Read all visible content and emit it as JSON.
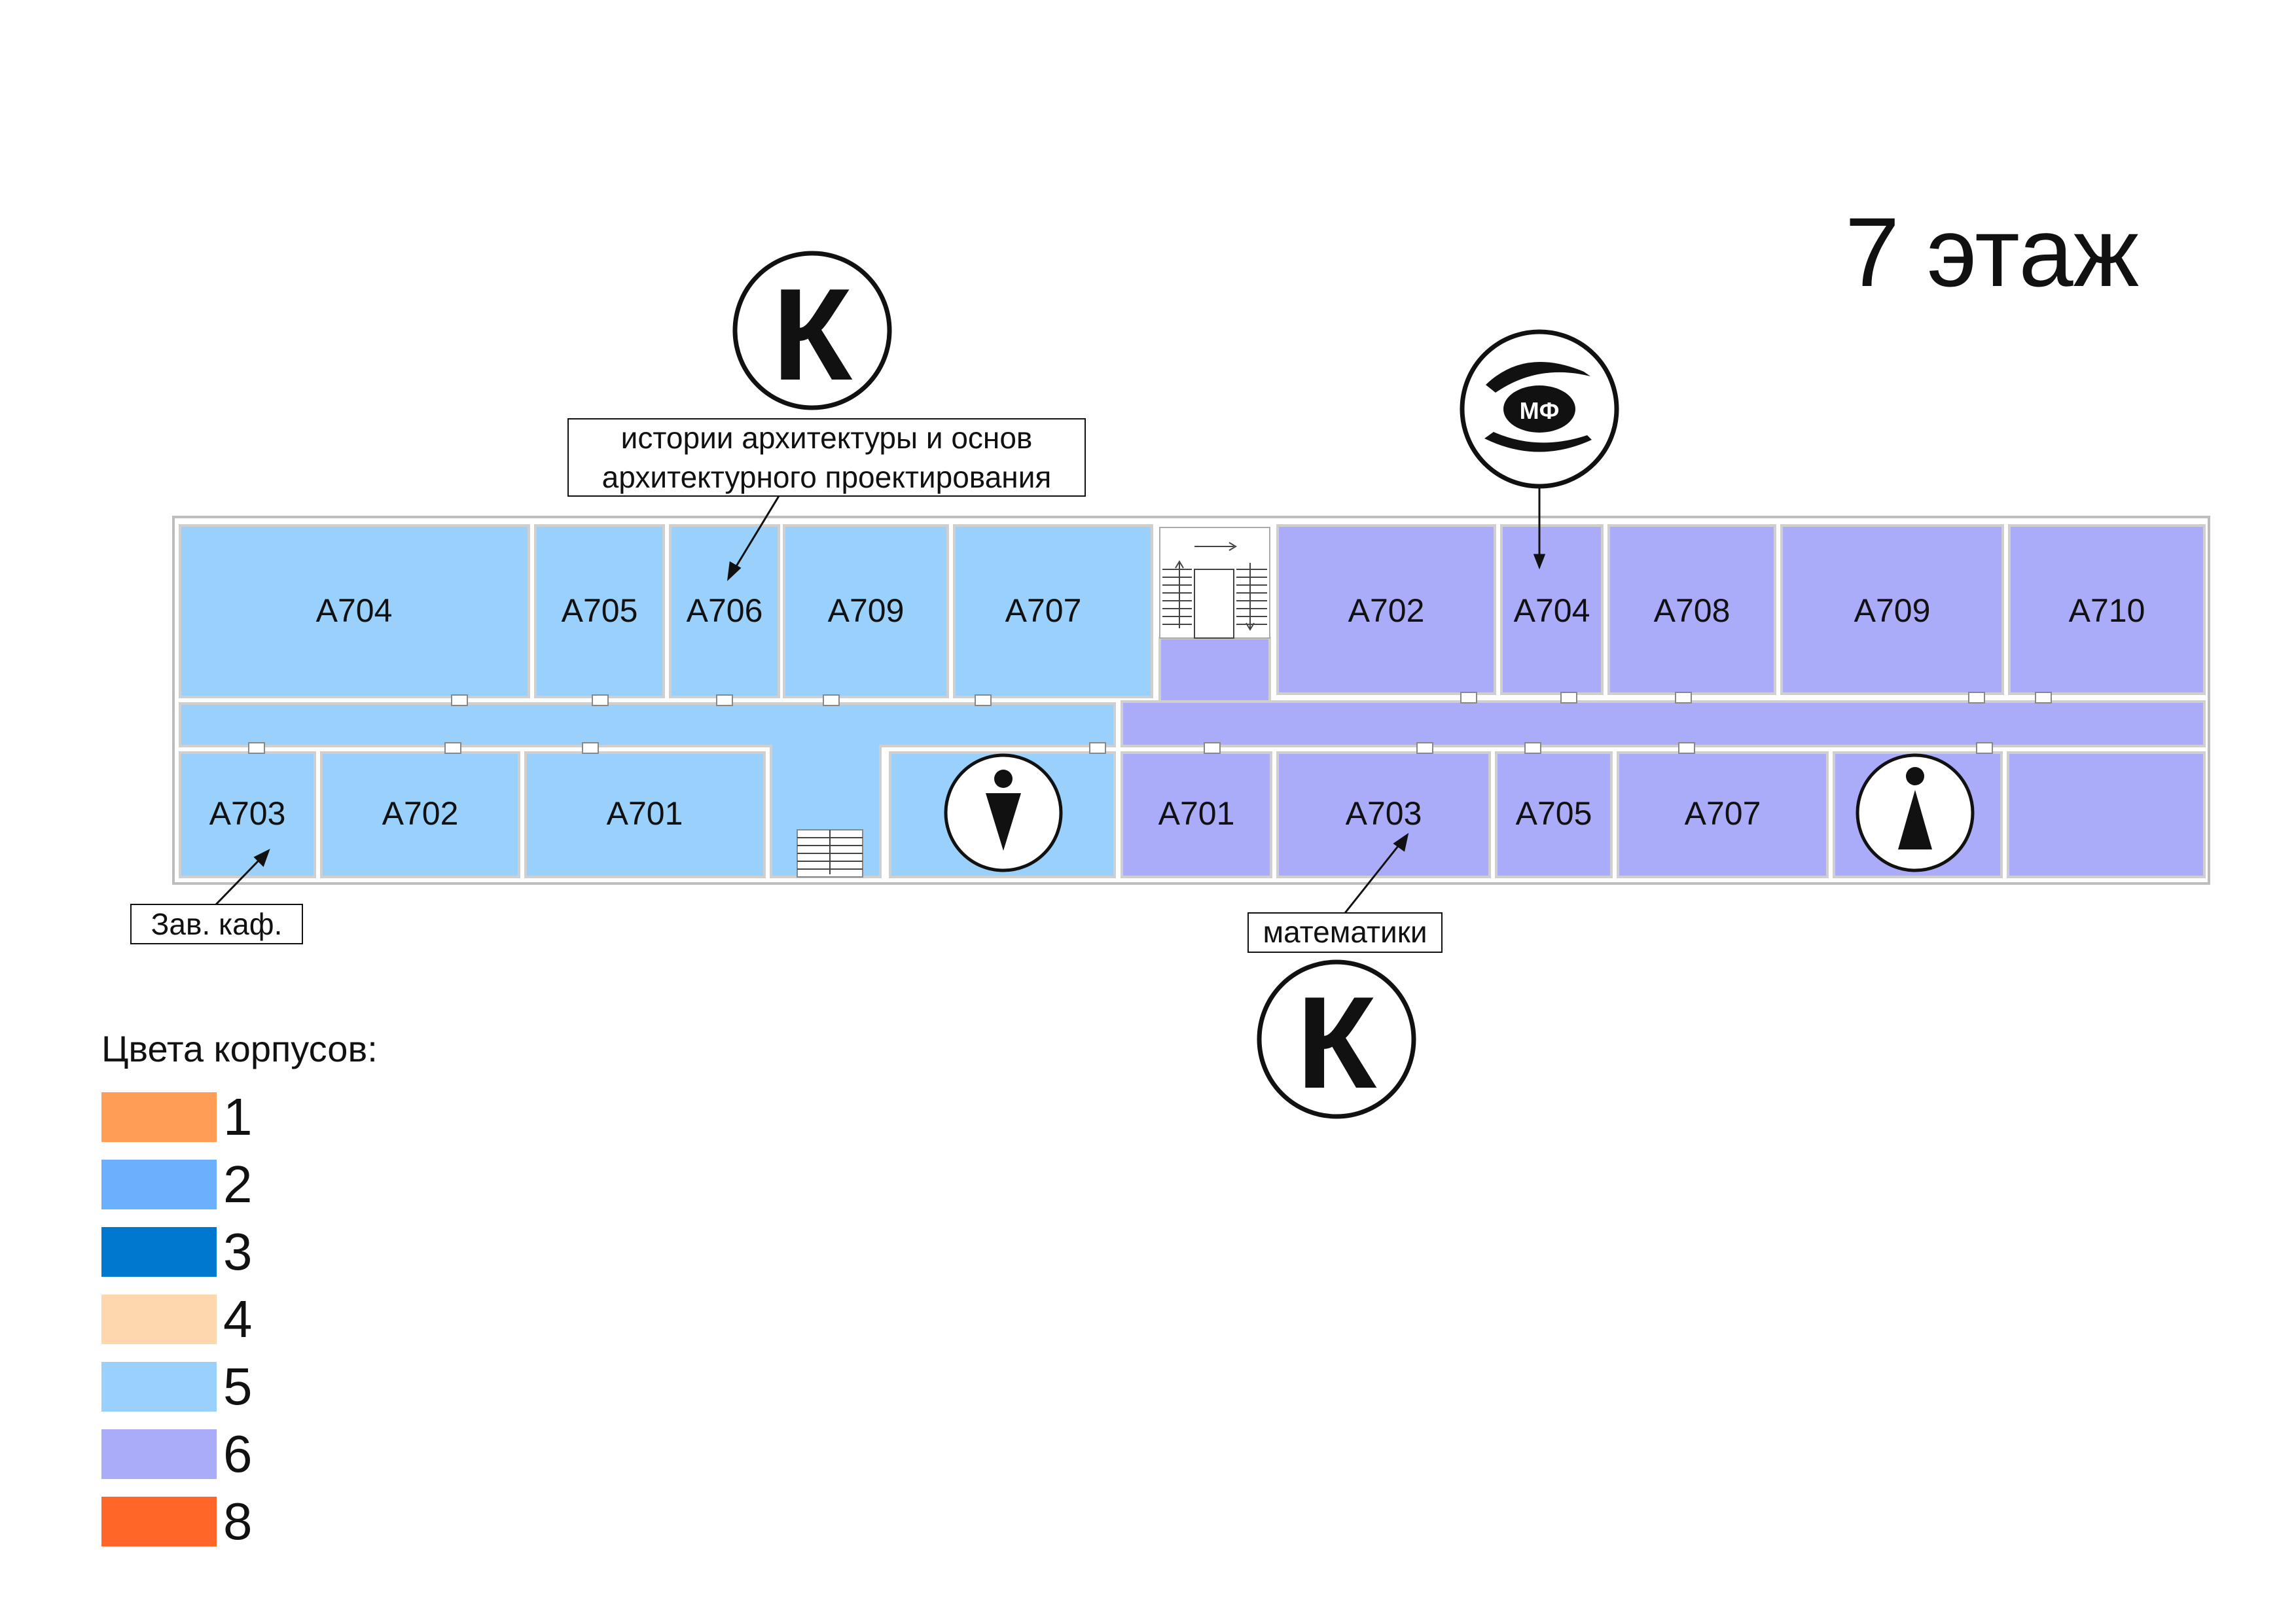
{
  "floor_title": "7 этаж",
  "colors": {
    "building5": "#99d1fc",
    "building6": "#aaacfa",
    "wall": "#cfcfcf",
    "outline": "#111111"
  },
  "rooms": {
    "b5_top_a704": "А704",
    "b5_top_a705": "А705",
    "b5_top_a706": "А706",
    "b5_top_a709": "А709",
    "b5_top_a707": "А707",
    "b5_bottom_a703": "А703",
    "b5_bottom_a702": "А702",
    "b5_bottom_a701": "А701",
    "b6_top_a702": "А702",
    "b6_top_a704": "А704",
    "b6_top_a708": "А708",
    "b6_top_a709": "А709",
    "b6_top_a710": "А710",
    "b6_bottom_a701": "А701",
    "b6_bottom_a703": "А703",
    "b6_bottom_a705": "А705",
    "b6_bottom_a707": "А707"
  },
  "callouts": {
    "history_dept_line1": "истории архитектуры и основ",
    "history_dept_line2": "архитектурного проектирования",
    "head_office": "Зав. каф.",
    "math_dept": "математики"
  },
  "icons": {
    "department_top": "К",
    "department_bottom": "К",
    "mf_label": "МФ",
    "mf_icon": "hands-holding-mf-icon",
    "male_wc": "male-restroom-icon",
    "female_wc": "female-restroom-icon"
  },
  "legend": {
    "title": "Цвета корпусов:",
    "items": [
      {
        "label": "1",
        "color": "#ff9c55"
      },
      {
        "label": "2",
        "color": "#6bb0fd"
      },
      {
        "label": "3",
        "color": "#0078d0"
      },
      {
        "label": "4",
        "color": "#ffd7ae"
      },
      {
        "label": "5",
        "color": "#99d1fc"
      },
      {
        "label": "6",
        "color": "#aaacfa"
      },
      {
        "label": "8",
        "color": "#ff6628"
      }
    ]
  }
}
